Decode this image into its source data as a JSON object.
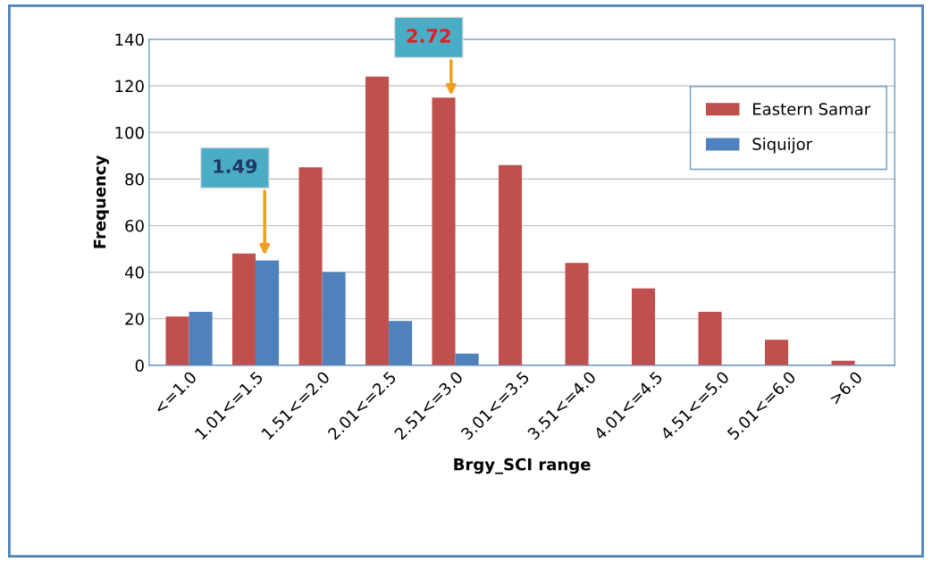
{
  "chart_data": {
    "type": "bar",
    "xlabel": "Brgy_SCI range",
    "ylabel": "Frequency",
    "categories": [
      "<=1.0",
      "1.01<=1.5",
      "1.51<=2.0",
      "2.01<=2.5",
      "2.51<=3.0",
      "3.01<=3.5",
      "3.51<=4.0",
      "4.01<=4.5",
      "4.51<=5.0",
      "5.01<=6.0",
      ">6.0"
    ],
    "series": [
      {
        "name": "Eastern Samar",
        "color": "#c0504d",
        "values": [
          21,
          48,
          85,
          124,
          115,
          86,
          44,
          33,
          23,
          11,
          2
        ]
      },
      {
        "name": "Siquijor",
        "color": "#4f81bd",
        "values": [
          23,
          45,
          40,
          19,
          5,
          0,
          0,
          0,
          0,
          0,
          0
        ]
      }
    ],
    "ylim": [
      0,
      140
    ],
    "yticks": [
      0,
      20,
      40,
      60,
      80,
      100,
      120,
      140
    ],
    "grid": "y",
    "legend": "top right",
    "annotations": [
      "1.49",
      "2.72"
    ]
  }
}
